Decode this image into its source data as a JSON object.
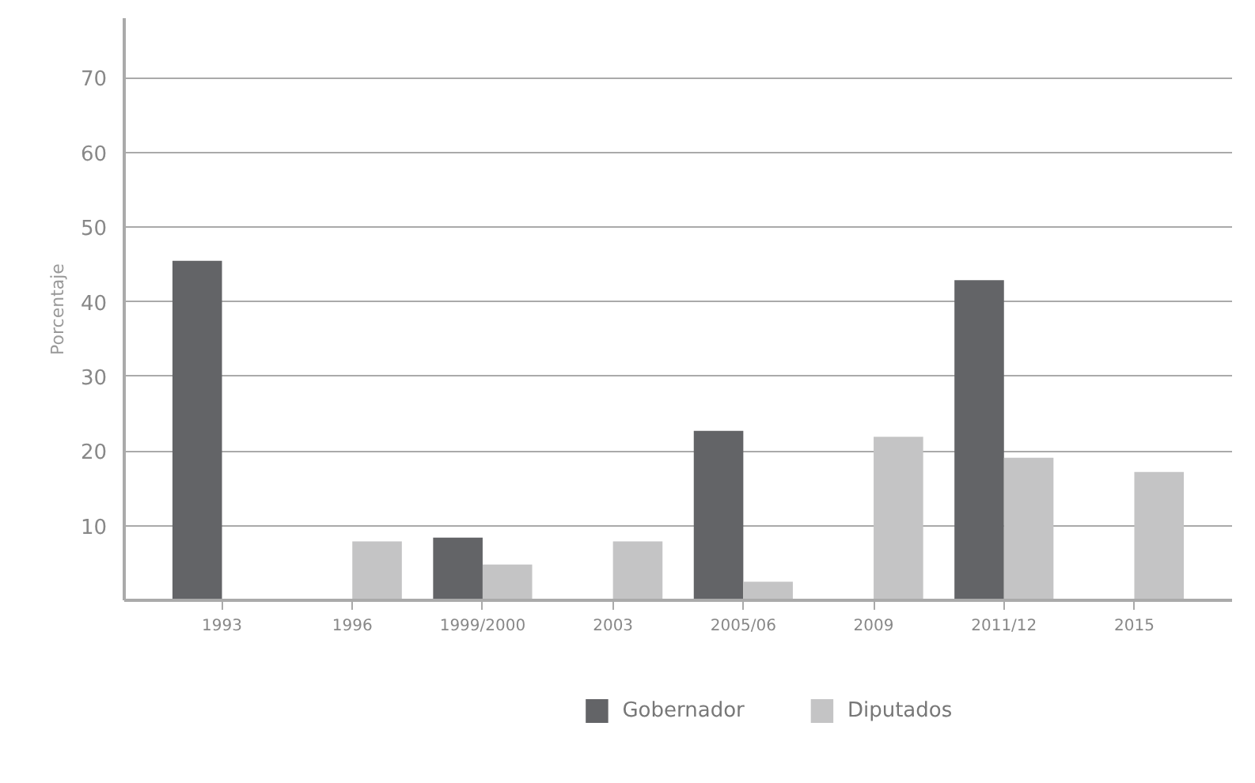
{
  "chart_data": {
    "type": "bar",
    "ylabel": "Porcentaje",
    "categories": [
      "1993",
      "1996",
      "1999/2000",
      "2003",
      "2005/06",
      "2009",
      "2011/12",
      "2015"
    ],
    "series": [
      {
        "name": "Gobernador",
        "color": "#636467",
        "values": [
          45.5,
          null,
          8.4,
          null,
          22.7,
          null,
          42.9,
          null
        ]
      },
      {
        "name": "Diputados",
        "color": "#c4c4c5",
        "values": [
          null,
          7.9,
          4.8,
          7.9,
          2.5,
          21.9,
          19.1,
          17.2
        ]
      }
    ],
    "ylim": [
      0,
      78
    ],
    "yticks": [
      10,
      20,
      30,
      40,
      50,
      60,
      70
    ],
    "grid": "y",
    "legend": "bottom"
  }
}
